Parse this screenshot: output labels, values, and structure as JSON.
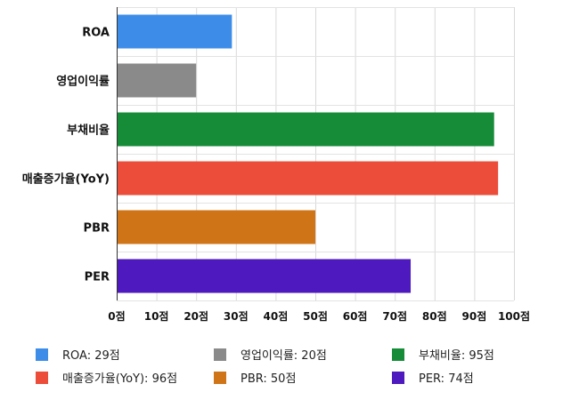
{
  "chart_data": {
    "type": "bar",
    "orientation": "horizontal",
    "categories": [
      "ROA",
      "영업이익률",
      "부채비율",
      "매출증가율(YoY)",
      "PBR",
      "PER"
    ],
    "values": [
      29,
      20,
      95,
      96,
      50,
      74
    ],
    "colors": [
      "#3d8de8",
      "#8a8a8a",
      "#178c38",
      "#ec4c3a",
      "#cf7518",
      "#4e19be"
    ],
    "xlim": [
      0,
      100
    ],
    "xticks": [
      0,
      10,
      20,
      30,
      40,
      50,
      60,
      70,
      80,
      90,
      100
    ],
    "tick_suffix": "점",
    "grid": true,
    "legend_position": "bottom",
    "legend": [
      {
        "label": "ROA: 29점",
        "color": "#3d8de8"
      },
      {
        "label": "영업이익률: 20점",
        "color": "#8a8a8a"
      },
      {
        "label": "부채비율: 95점",
        "color": "#178c38"
      },
      {
        "label": "매출증가율(YoY): 96점",
        "color": "#ec4c3a"
      },
      {
        "label": "PBR: 50점",
        "color": "#cf7518"
      },
      {
        "label": "PER: 74점",
        "color": "#4e19be"
      }
    ]
  }
}
